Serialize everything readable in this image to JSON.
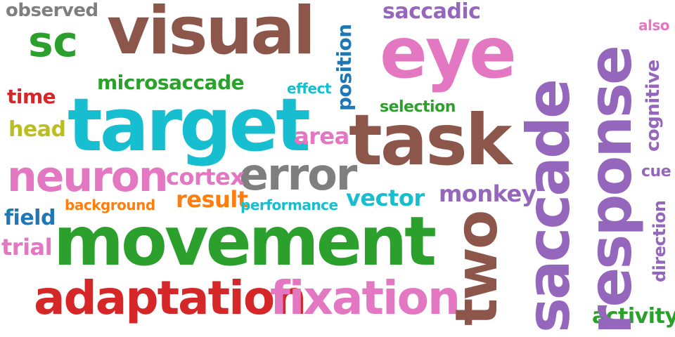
{
  "words": {
    "observed": "observed",
    "visual": "visual",
    "sc": "sc",
    "saccadic": "saccadic",
    "eye": "eye",
    "also": "also",
    "position": "position",
    "microsaccade": "microsaccade",
    "effect": "effect",
    "time": "time",
    "selection": "selection",
    "target": "target",
    "head": "head",
    "task": "task",
    "area": "area",
    "saccade": "saccade",
    "response": "response",
    "cognitive": "cognitive",
    "neuron": "neuron",
    "error": "error",
    "cortex": "cortex",
    "cue": "cue",
    "monkey": "monkey",
    "result": "result",
    "background": "background",
    "performance": "performance",
    "vector": "vector",
    "field": "field",
    "movement": "movement",
    "direction": "direction",
    "trial": "trial",
    "two": "two",
    "adaptation": "adaptation",
    "fixation": "fixation",
    "activity": "activity"
  },
  "colors": {
    "brown": "#8c564b",
    "pink": "#e377c2",
    "purple": "#9467bd",
    "cyan": "#17becf",
    "green": "#2ca02c",
    "red": "#d62728",
    "gray": "#7f7f7f",
    "olive": "#bcbd22",
    "blue": "#1f77b4",
    "orange": "#ff7f0e",
    "background": "#ffffff"
  }
}
